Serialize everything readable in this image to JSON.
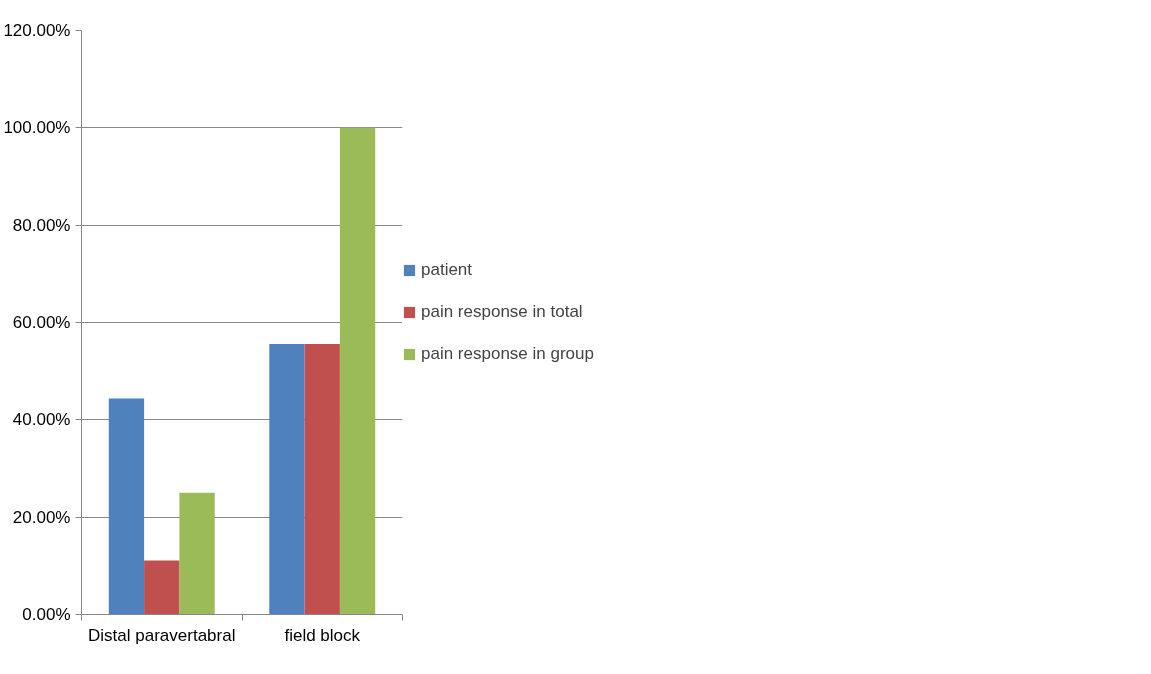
{
  "chart_data": {
    "type": "bar",
    "categories": [
      "Distal paravertabral",
      "field block"
    ],
    "series": [
      {
        "name": "patient",
        "color": "#4f81bd",
        "values": [
          44.4,
          55.6
        ]
      },
      {
        "name": "pain response in total",
        "color": "#c0504d",
        "values": [
          11.1,
          55.6
        ]
      },
      {
        "name": "pain response in group",
        "color": "#9bbb59",
        "values": [
          25,
          100
        ]
      }
    ],
    "ylim": [
      0,
      120
    ],
    "yticks": [
      {
        "value": 0,
        "label": "0.00%"
      },
      {
        "value": 20,
        "label": "20.00%"
      },
      {
        "value": 40,
        "label": "40.00%"
      },
      {
        "value": 60,
        "label": "60.00%"
      },
      {
        "value": 80,
        "label": "80.00%"
      },
      {
        "value": 100,
        "label": "100.00%"
      },
      {
        "value": 120,
        "label": "120.00%"
      }
    ],
    "grid": "y",
    "legend": "right"
  }
}
